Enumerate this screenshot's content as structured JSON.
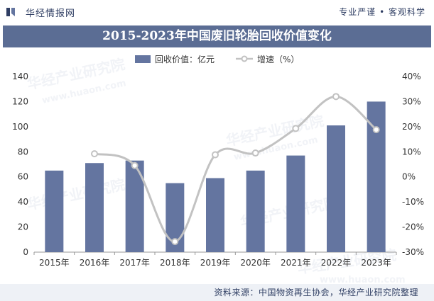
{
  "header": {
    "brand": "华经情报网",
    "tagline": "专业严谨 • 客观科学"
  },
  "colors": {
    "bar": "#6475a0",
    "line": "#c2c2c2",
    "title_bg": "#5b6d94",
    "text": "#2f3e63"
  },
  "footer": {
    "source": "资料来源：中国物资再生协会，华经产业研究院整理"
  },
  "watermark": {
    "cn": "华经产业研究院",
    "url": "www.huaon.com"
  },
  "chart_data": {
    "type": "bar",
    "title": "2015-2023年中国废旧轮胎回收价值变化",
    "categories": [
      "2015年",
      "2016年",
      "2017年",
      "2018年",
      "2019年",
      "2020年",
      "2021年",
      "2022年",
      "2023年"
    ],
    "series": [
      {
        "name": "回收价值：亿元",
        "type": "bar",
        "axis": "left",
        "values": [
          65,
          71,
          73,
          55,
          59,
          65,
          77,
          101,
          120
        ]
      },
      {
        "name": "增速（%）",
        "type": "line",
        "axis": "right",
        "values": [
          null,
          9.2,
          4.5,
          -25.8,
          8.8,
          9.5,
          19.3,
          32.0,
          18.8
        ]
      }
    ],
    "y_left": {
      "min": 0,
      "max": 140,
      "ticks": [
        0,
        20,
        40,
        60,
        80,
        100,
        120,
        140
      ]
    },
    "y_right": {
      "min": -30,
      "max": 40,
      "ticks": [
        "-30%",
        "-20%",
        "-10%",
        "0%",
        "10%",
        "20%",
        "30%",
        "40%"
      ]
    },
    "legend": [
      "回收价值：亿元",
      "增速（%）"
    ],
    "legend_position": "top"
  }
}
